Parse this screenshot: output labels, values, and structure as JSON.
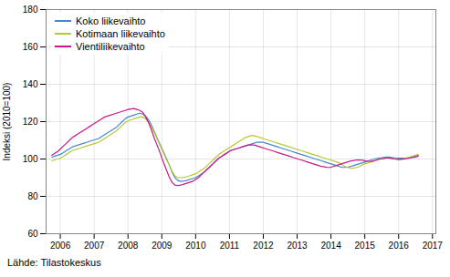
{
  "chart_data": {
    "type": "line",
    "ylabel": "Indeksi (2010=100)",
    "caption": "Lähde: Tilastokeskus",
    "xlim": [
      2005.58,
      2017.1
    ],
    "xticks": [
      2006,
      2007,
      2008,
      2009,
      2010,
      2011,
      2012,
      2013,
      2014,
      2015,
      2016,
      2017
    ],
    "ylim": [
      60,
      180
    ],
    "yticks": [
      60,
      80,
      100,
      120,
      140,
      160,
      180
    ],
    "grid": true,
    "legend": "upper left",
    "x": [
      2005.75,
      2005.83664,
      2005.92328,
      2006.00992,
      2006.09656,
      2006.1832,
      2006.26984,
      2006.35648,
      2006.44312,
      2006.52976,
      2006.6164,
      2006.70304,
      2006.78968,
      2006.87632,
      2006.96296,
      2007.0496,
      2007.13624,
      2007.22288,
      2007.30952,
      2007.39616,
      2007.4828,
      2007.56944,
      2007.65608,
      2007.74272,
      2007.82936,
      2007.916,
      2008.00264,
      2008.08928,
      2008.17592,
      2008.26256,
      2008.3492,
      2008.43584,
      2008.52248,
      2008.60912,
      2008.69576,
      2008.7824,
      2008.86904,
      2008.95568,
      2009.04232,
      2009.12896,
      2009.2156,
      2009.30224,
      2009.38888,
      2009.47552,
      2009.56216,
      2009.6488,
      2009.73544,
      2009.82208,
      2009.90872,
      2009.99536,
      2010.082,
      2010.16864,
      2010.25528,
      2010.34192,
      2010.42856,
      2010.5152,
      2010.60184,
      2010.68848,
      2010.77512,
      2010.86176,
      2010.9484,
      2011.03504,
      2011.12168,
      2011.20832,
      2011.29496,
      2011.3816,
      2011.46824,
      2011.55488,
      2011.64152,
      2011.72816,
      2011.8148,
      2011.90144,
      2011.98808,
      2012.07472,
      2012.16136,
      2012.248,
      2012.33464,
      2012.42128,
      2012.50792,
      2012.59456,
      2012.6812,
      2012.76784,
      2012.85448,
      2012.94112,
      2013.02776,
      2013.1144,
      2013.20104,
      2013.28768,
      2013.37432,
      2013.46096,
      2013.5476,
      2013.63424,
      2013.72088,
      2013.80752,
      2013.89416,
      2013.9808,
      2014.06744,
      2014.15408,
      2014.24072,
      2014.32736,
      2014.414,
      2014.50064,
      2014.58728,
      2014.67392,
      2014.76056,
      2014.8472,
      2014.93384,
      2015.02048,
      2015.10712,
      2015.19376,
      2015.2804,
      2015.36704,
      2015.45368,
      2015.54032,
      2015.62696,
      2015.7136,
      2015.80024,
      2015.88688,
      2015.97352,
      2016.06016,
      2016.1468,
      2016.23344,
      2016.32008,
      2016.40672,
      2016.49336,
      2016.58
    ],
    "series": [
      {
        "name": "Koko liikevaihto",
        "color": "#4488cc",
        "values": [
          101.0,
          101.5,
          102.0,
          102.5,
          103.5,
          104.5,
          105.5,
          106.5,
          107.0,
          107.5,
          108.0,
          108.5,
          109.0,
          109.5,
          110.0,
          110.5,
          111.0,
          112.0,
          113.0,
          114.0,
          115.0,
          116.0,
          117.0,
          118.5,
          120.0,
          121.5,
          122.5,
          123.0,
          123.5,
          124.0,
          124.5,
          124.0,
          123.0,
          121.0,
          118.0,
          114.5,
          111.0,
          107.5,
          104.0,
          100.5,
          97.0,
          93.0,
          90.0,
          88.5,
          88.0,
          88.2,
          88.5,
          89.0,
          89.5,
          90.0,
          91.0,
          92.0,
          93.0,
          94.5,
          96.0,
          97.5,
          99.0,
          100.5,
          101.5,
          102.5,
          103.5,
          104.5,
          105.0,
          105.5,
          106.0,
          106.5,
          107.0,
          107.5,
          108.0,
          108.5,
          109.0,
          109.0,
          109.0,
          108.5,
          108.0,
          107.5,
          107.0,
          106.5,
          106.0,
          105.5,
          105.0,
          104.5,
          104.0,
          103.5,
          103.0,
          102.5,
          102.0,
          101.5,
          101.0,
          100.5,
          100.0,
          99.5,
          99.0,
          98.5,
          98.0,
          97.5,
          97.0,
          96.5,
          96.0,
          95.5,
          95.5,
          95.7,
          96.0,
          96.5,
          97.0,
          97.5,
          98.0,
          98.5,
          99.0,
          99.5,
          100.0,
          100.3,
          100.6,
          100.8,
          101.0,
          101.0,
          100.8,
          100.6,
          100.5,
          100.4,
          100.5,
          100.6,
          100.8,
          101.0,
          101.5,
          102.0
        ]
      },
      {
        "name": "Kotimaan liikevaihto",
        "color": "#b8c832",
        "values": [
          99.0,
          99.5,
          100.0,
          100.5,
          101.5,
          102.5,
          103.5,
          104.5,
          105.0,
          105.5,
          106.0,
          106.5,
          107.0,
          107.5,
          108.0,
          108.5,
          109.0,
          110.0,
          111.0,
          112.0,
          113.0,
          114.0,
          115.0,
          116.5,
          118.0,
          119.5,
          120.5,
          121.0,
          121.5,
          122.0,
          122.5,
          122.5,
          121.5,
          119.5,
          117.0,
          114.0,
          110.5,
          107.0,
          103.5,
          100.0,
          97.0,
          93.5,
          91.0,
          90.0,
          90.0,
          90.2,
          90.5,
          91.0,
          91.5,
          92.0,
          93.0,
          94.0,
          95.0,
          96.5,
          98.0,
          99.5,
          101.0,
          102.5,
          103.5,
          104.5,
          105.5,
          106.5,
          107.5,
          108.5,
          109.5,
          110.5,
          111.5,
          112.0,
          112.5,
          112.5,
          112.0,
          111.5,
          111.0,
          110.5,
          110.0,
          109.5,
          109.0,
          108.5,
          108.0,
          107.5,
          107.0,
          106.5,
          106.0,
          105.5,
          105.0,
          104.5,
          104.0,
          103.5,
          103.0,
          102.5,
          102.0,
          101.5,
          101.0,
          100.5,
          100.0,
          99.5,
          99.0,
          98.5,
          98.0,
          97.0,
          96.0,
          95.5,
          95.0,
          95.2,
          95.5,
          96.0,
          97.0,
          97.5,
          98.0,
          98.5,
          99.0,
          99.5,
          100.0,
          100.2,
          100.5,
          100.5,
          100.3,
          100.0,
          99.8,
          99.7,
          100.0,
          100.5,
          101.0,
          101.5,
          102.0,
          102.5
        ]
      },
      {
        "name": "Vientiliikevaihto",
        "color": "#cc1688",
        "values": [
          102.0,
          103.0,
          104.0,
          105.5,
          107.0,
          108.5,
          110.0,
          111.5,
          112.5,
          113.5,
          114.5,
          115.5,
          116.5,
          117.5,
          118.5,
          119.5,
          120.5,
          121.5,
          122.5,
          123.0,
          123.5,
          124.0,
          124.5,
          125.0,
          125.5,
          126.0,
          126.5,
          126.8,
          127.0,
          126.5,
          126.0,
          125.0,
          122.5,
          119.5,
          115.5,
          111.0,
          107.0,
          103.0,
          98.5,
          94.5,
          90.5,
          87.5,
          86.0,
          85.8,
          86.0,
          86.5,
          87.0,
          87.5,
          88.0,
          89.0,
          90.0,
          91.5,
          93.0,
          94.5,
          96.0,
          97.5,
          99.0,
          100.5,
          101.5,
          102.5,
          103.5,
          104.5,
          105.0,
          105.5,
          106.0,
          106.5,
          107.0,
          107.5,
          107.5,
          107.5,
          107.0,
          106.5,
          106.0,
          105.5,
          105.0,
          104.5,
          104.0,
          103.5,
          103.0,
          102.5,
          102.0,
          101.5,
          101.0,
          100.5,
          100.0,
          99.5,
          99.0,
          98.5,
          98.0,
          97.5,
          97.0,
          96.5,
          96.0,
          95.8,
          95.5,
          95.5,
          96.0,
          96.5,
          97.0,
          97.5,
          98.0,
          98.5,
          99.0,
          99.2,
          99.5,
          99.5,
          99.3,
          99.0,
          98.8,
          98.7,
          99.0,
          99.5,
          100.0,
          100.2,
          100.5,
          100.5,
          100.3,
          100.0,
          99.8,
          99.8,
          100.0,
          100.2,
          100.5,
          100.8,
          101.0,
          101.5
        ]
      }
    ]
  }
}
